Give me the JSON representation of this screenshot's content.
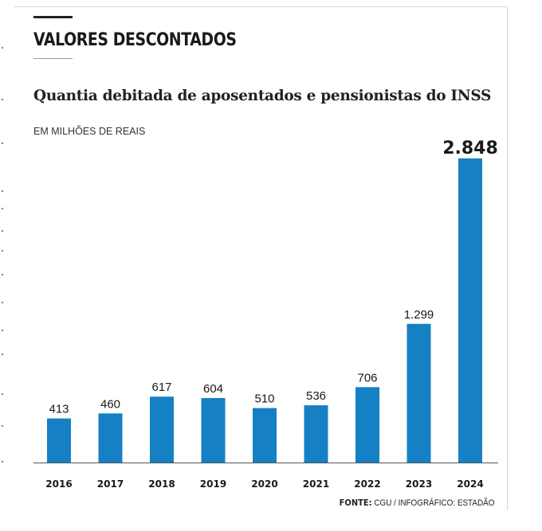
{
  "header": {
    "title": "VALORES DESCONTADOS",
    "subtitle": "Quantia debitada de aposentados e pensionistas do INSS",
    "unit": "EM MILHÕES DE REAIS"
  },
  "source": {
    "label": "FONTE:",
    "text": "CGU / INFOGRÁFICO: ESTADÃO"
  },
  "colors": {
    "bar": "#1580c4",
    "text": "#1a1a1a",
    "axis": "#555555"
  },
  "chart_data": {
    "type": "bar",
    "categories": [
      "2016",
      "2017",
      "2018",
      "2019",
      "2020",
      "2021",
      "2022",
      "2023",
      "2024"
    ],
    "values": [
      413,
      460,
      617,
      604,
      510,
      536,
      706,
      1299,
      2848
    ],
    "value_labels": [
      "413",
      "460",
      "617",
      "604",
      "510",
      "536",
      "706",
      "1.299",
      "2.848"
    ],
    "highlight_index": 8,
    "title": "Quantia debitada de aposentados e pensionistas do INSS",
    "ylabel": "EM MILHÕES DE REAIS",
    "xlabel": "",
    "ylim": [
      0,
      2848
    ],
    "grid": false,
    "legend": "none"
  }
}
